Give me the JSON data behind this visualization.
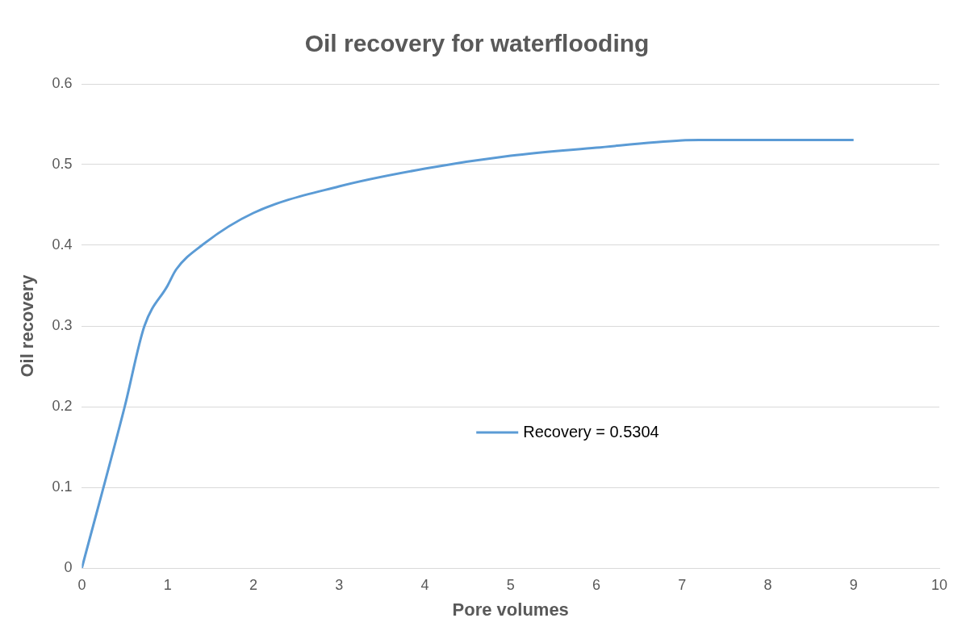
{
  "chart_data": {
    "type": "line",
    "title": "Oil recovery for waterflooding",
    "xlabel": "Pore volumes",
    "ylabel": "Oil recovery",
    "series": [
      {
        "name": "Recovery = 0.5304",
        "color": "#5b9bd5",
        "x": [
          0,
          0.5,
          0.73,
          1,
          1.1,
          1.4,
          2,
          3,
          4,
          5,
          6,
          7,
          7.2,
          9
        ],
        "values": [
          0,
          0.2,
          0.3,
          0.35,
          0.37,
          0.4,
          0.44,
          0.473,
          0.495,
          0.511,
          0.521,
          0.53,
          0.5304,
          0.5304
        ]
      }
    ],
    "xlim": [
      0,
      10
    ],
    "xticks": [
      0,
      1,
      2,
      3,
      4,
      5,
      6,
      7,
      8,
      9,
      10
    ],
    "ylim": [
      0,
      0.6
    ],
    "yticks": [
      0,
      0.1,
      0.2,
      0.3,
      0.4,
      0.5,
      0.6
    ],
    "grid": "y",
    "legend": "center",
    "marker": "none",
    "line_style": "solid"
  }
}
